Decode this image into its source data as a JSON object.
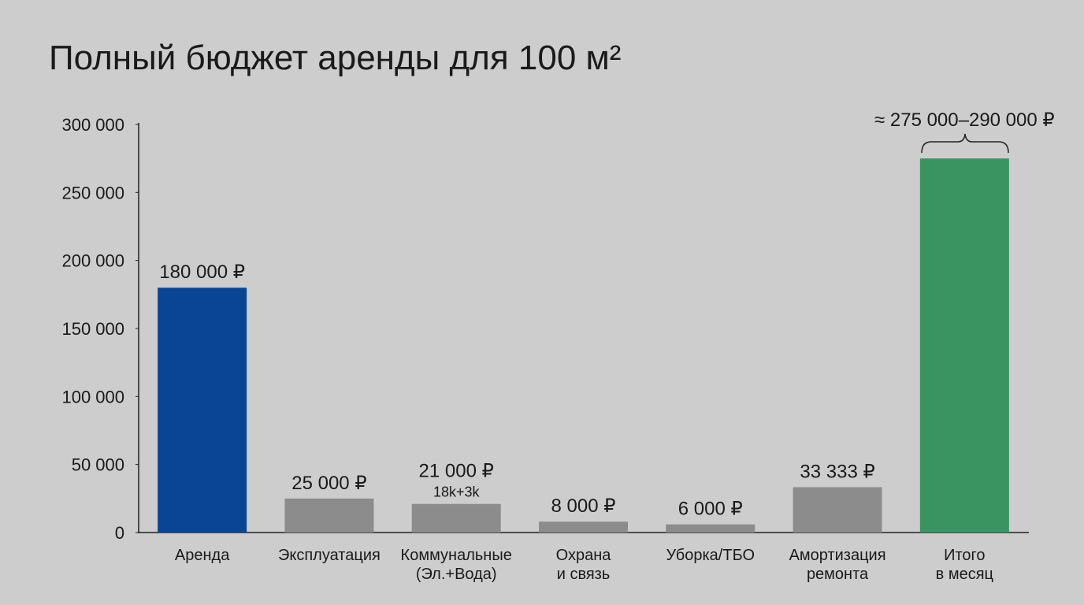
{
  "chart_data": {
    "type": "bar",
    "title": "Полный бюджет аренды для 100 м²",
    "categories": [
      "Аренда",
      "Эксплуатация",
      "Коммунальные\n(Эл.+Вода)",
      "Охрана\nи связь",
      "Уборка/ТБО",
      "Амортизация\nремонта",
      "Итого\nв месяц"
    ],
    "values": [
      180000,
      25000,
      21000,
      8000,
      6000,
      33333,
      275000
    ],
    "value_labels": [
      "180 000 ₽",
      "25 000 ₽",
      "21 000 ₽",
      "8 000 ₽",
      "6 000 ₽",
      "33 333 ₽",
      null
    ],
    "value_notes": [
      null,
      null,
      "18k+3k",
      null,
      null,
      null,
      null
    ],
    "total_annotation": "≈ 275 000–290 000 ₽",
    "colors": [
      "#0a4595",
      "#8c8c8c",
      "#8c8c8c",
      "#8c8c8c",
      "#8c8c8c",
      "#8c8c8c",
      "#3a9462"
    ],
    "ylim": [
      0,
      300000
    ],
    "yticks": [
      0,
      {
        "value": 50000,
        "label": "50 000"
      },
      {
        "value": 100000,
        "label": "100 000"
      },
      {
        "value": 150000,
        "label": "150 000"
      },
      {
        "value": 200000,
        "label": "200 000"
      },
      {
        "value": 250000,
        "label": "250 000"
      },
      {
        "value": 300000,
        "label": "300 000"
      }
    ],
    "grid": false
  }
}
